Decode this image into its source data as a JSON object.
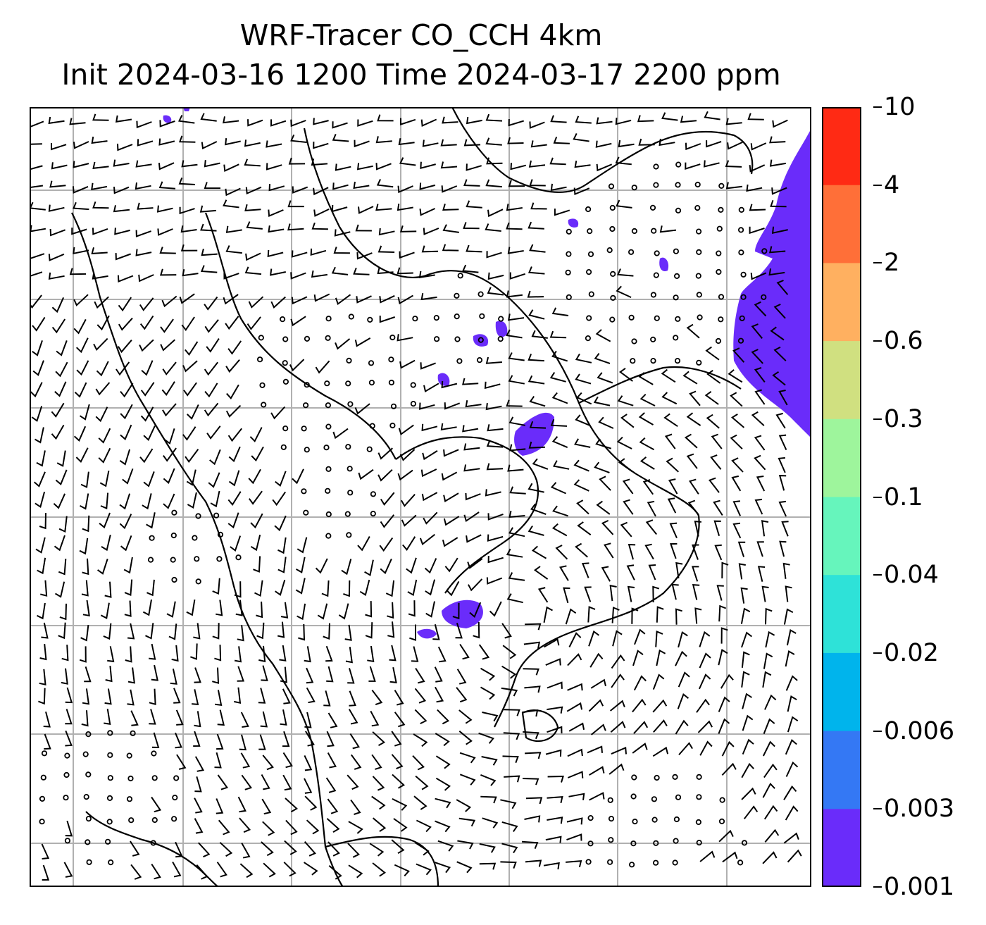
{
  "title": {
    "line1": "WRF-Tracer CO_CCH 4km",
    "line2": "Init 2024-03-16 1200 Time 2024-03-17 2200 ppm"
  },
  "colorbar": {
    "levels": [
      {
        "label": "10",
        "color": "#ff2a14"
      },
      {
        "label": "4",
        "color": "#ff6f38"
      },
      {
        "label": "2",
        "color": "#ffb060"
      },
      {
        "label": "0.6",
        "color": "#d0e080"
      },
      {
        "label": "0.3",
        "color": "#9ef59c"
      },
      {
        "label": "0.1",
        "color": "#66f5bc"
      },
      {
        "label": "0.04",
        "color": "#2ee2d8"
      },
      {
        "label": "0.02",
        "color": "#00b4ec"
      },
      {
        "label": "0.006",
        "color": "#3478f4"
      },
      {
        "label": "0.003",
        "color": "#6a2cfa"
      },
      {
        "label": "0.001",
        "color": ""
      }
    ]
  },
  "map": {
    "tracer_color": "#6a2cfa",
    "gridline_color": "#b0b0b0",
    "layers": [
      "CO_CCH tracer concentration (filled contours)",
      "wind barbs",
      "coastlines and borders",
      "lat/lon gridlines"
    ]
  }
}
